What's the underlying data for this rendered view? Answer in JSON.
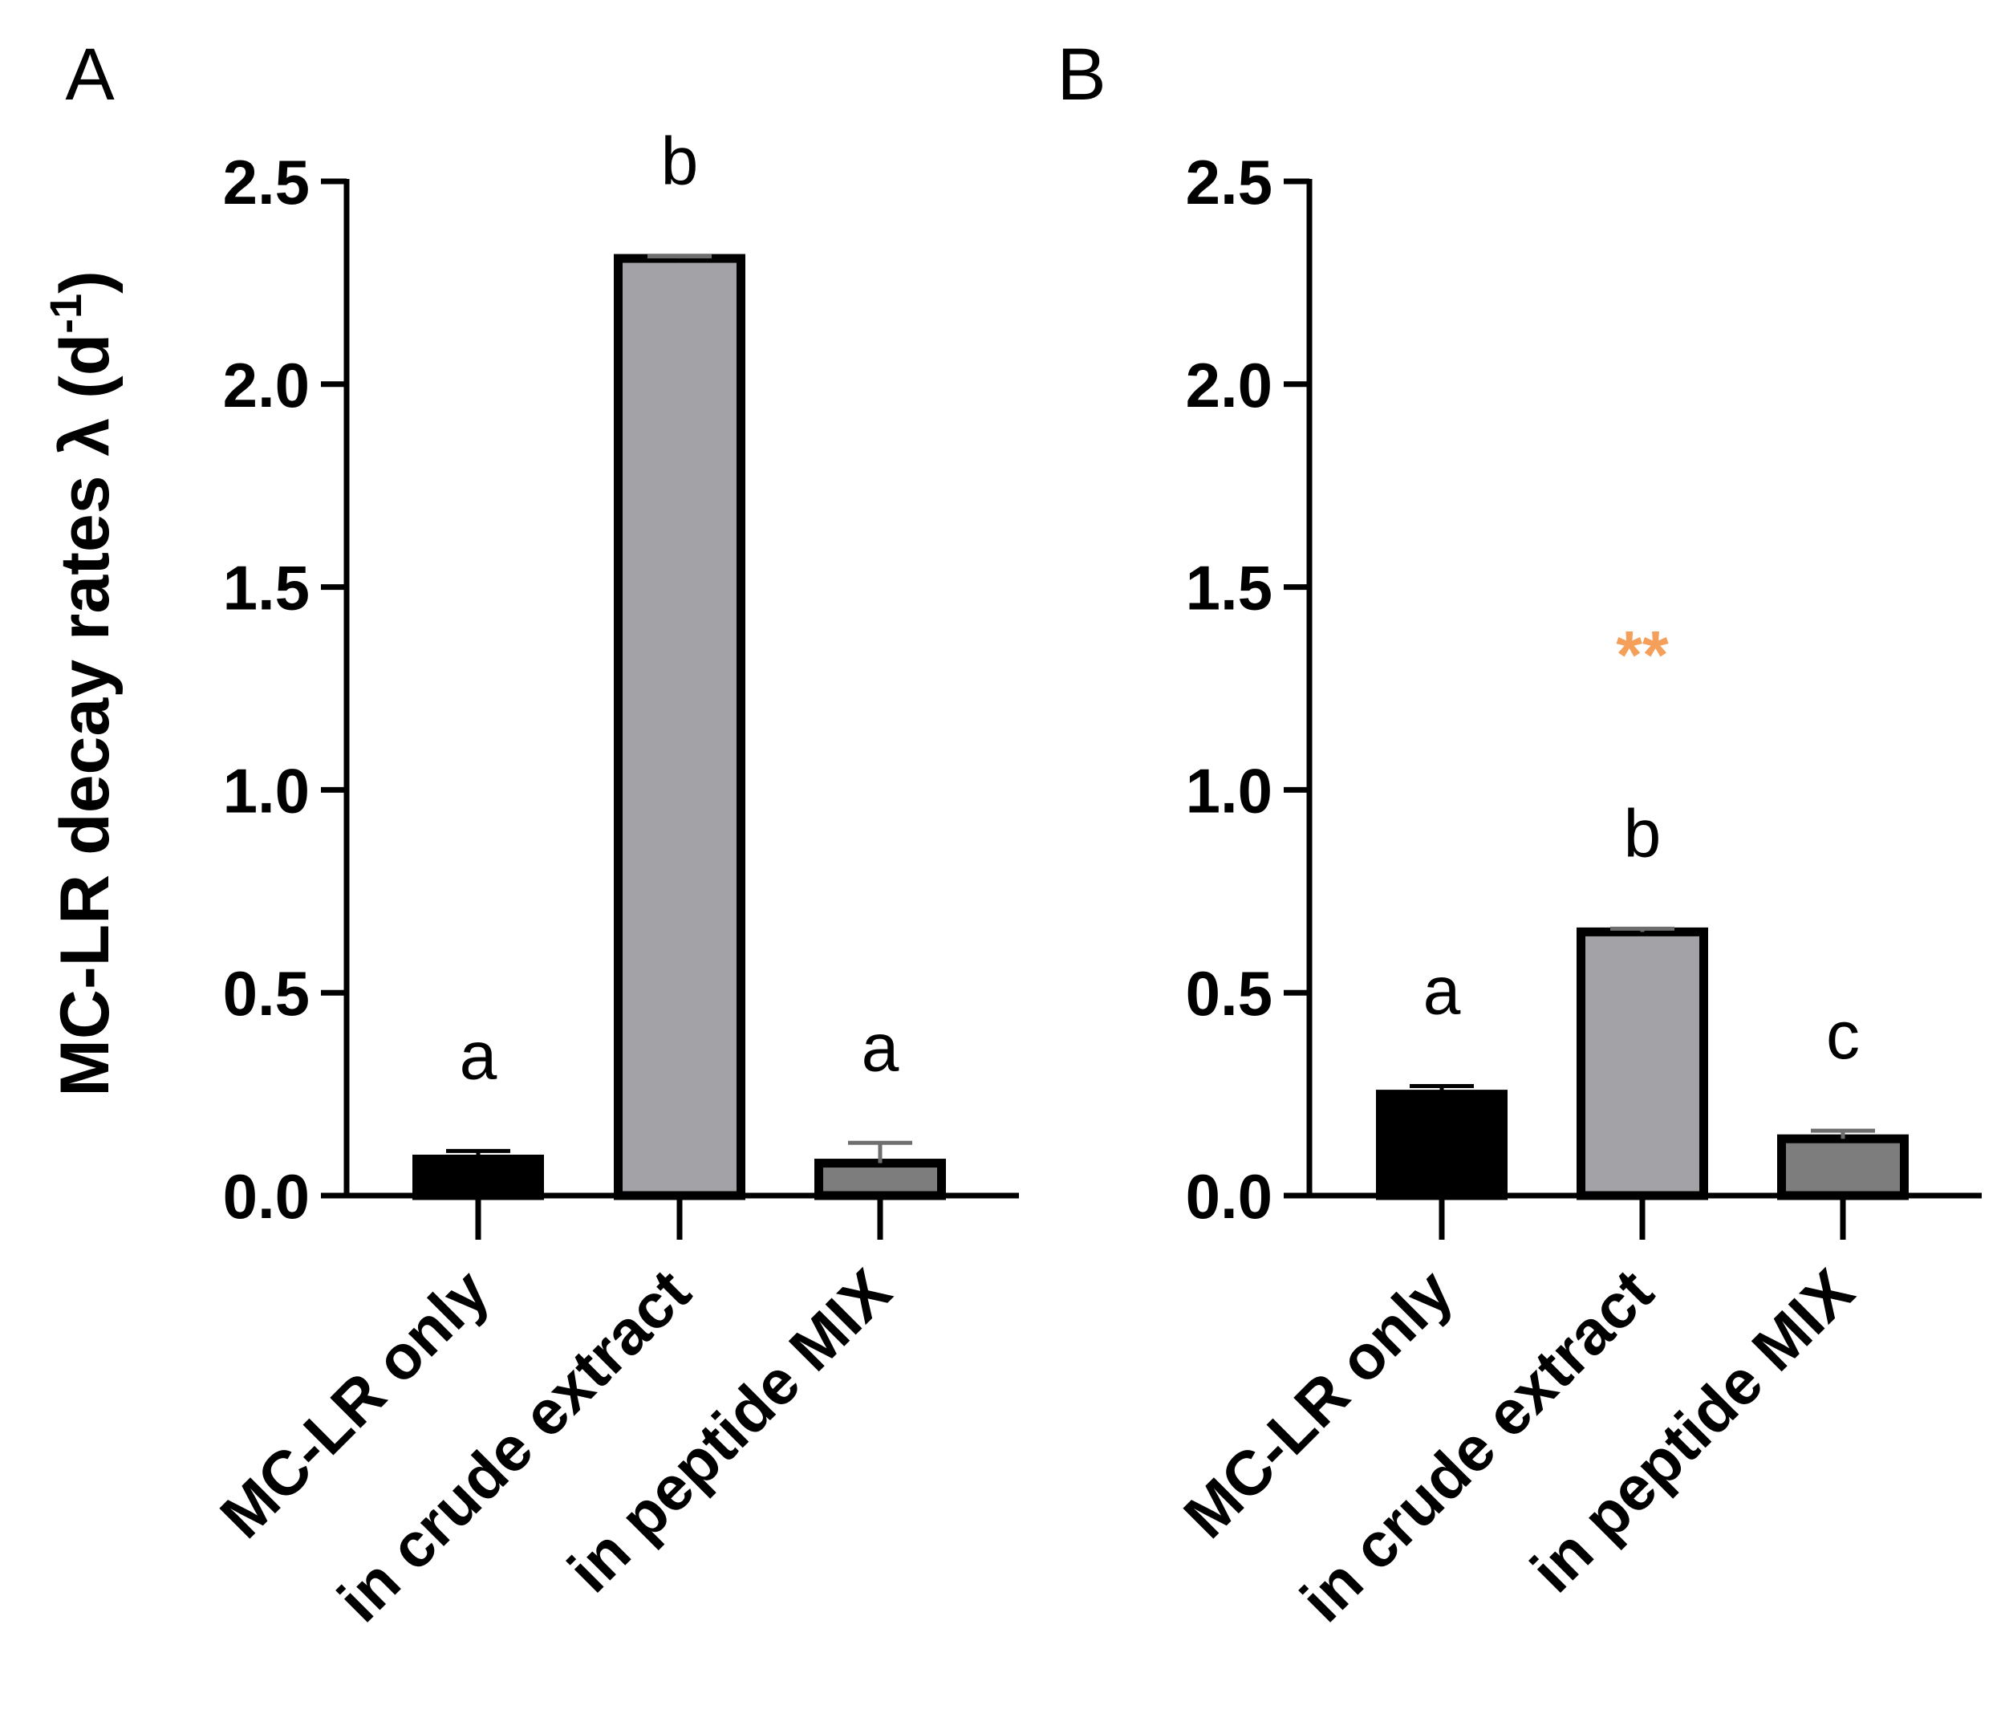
{
  "chart_data": [
    {
      "panel": "A",
      "type": "bar",
      "ylabel": "MC-LR decay rates λ (d",
      "ylabel_sup": "-1",
      "ylabel_end": ")",
      "ylim": [
        0,
        2.5
      ],
      "yticks": [
        "0.0",
        "0.5",
        "1.0",
        "1.5",
        "2.0",
        "2.5"
      ],
      "categories": [
        "MC-LR only",
        "in crude extract",
        "in peptide MIX"
      ],
      "values": [
        0.09,
        2.31,
        0.08
      ],
      "errors": [
        0.02,
        0.005,
        0.05
      ],
      "colors": [
        "#000000",
        "#a3a3a7",
        "#7d7d7d"
      ],
      "significance": [
        "a",
        "b",
        "a"
      ],
      "annotation": null
    },
    {
      "panel": "B",
      "type": "bar",
      "ylim": [
        0,
        2.5
      ],
      "yticks": [
        "0.0",
        "0.5",
        "1.0",
        "1.5",
        "2.0",
        "2.5"
      ],
      "categories": [
        "MC-LR only",
        "in crude extract",
        "in peptide MIX"
      ],
      "values": [
        0.25,
        0.65,
        0.14
      ],
      "errors": [
        0.02,
        0.008,
        0.02
      ],
      "colors": [
        "#000000",
        "#a3a3a7",
        "#7d7d7d"
      ],
      "significance": [
        "a",
        "b",
        "c"
      ],
      "annotation": {
        "text": "**",
        "category_index": 1,
        "color": "#f5a05a"
      }
    }
  ]
}
